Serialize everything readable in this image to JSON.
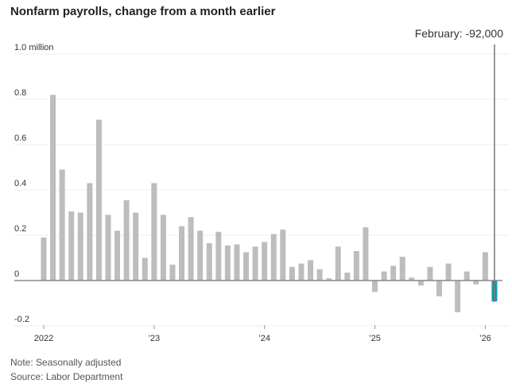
{
  "chart_data": {
    "type": "bar",
    "title": "Nonfarm payrolls, change from a month earlier",
    "unit_label": "1.0 million",
    "yticks": [
      {
        "value": 1.0,
        "label": "1.0 million"
      },
      {
        "value": 0.8,
        "label": "0.8"
      },
      {
        "value": 0.6,
        "label": "0.6"
      },
      {
        "value": 0.4,
        "label": "0.4"
      },
      {
        "value": 0.2,
        "label": "0.2"
      },
      {
        "value": 0,
        "label": "0"
      },
      {
        "value": -0.2,
        "label": "-0.2"
      }
    ],
    "ylim": [
      -0.2,
      1.0
    ],
    "xticks": [
      {
        "index": 0,
        "label": "2022"
      },
      {
        "index": 12,
        "label": "’23"
      },
      {
        "index": 24,
        "label": "’24"
      },
      {
        "index": 36,
        "label": "’25"
      },
      {
        "index": 48,
        "label": "’26"
      }
    ],
    "start": "2022-01",
    "frequency": "monthly",
    "values": [
      0.19,
      0.82,
      0.49,
      0.305,
      0.3,
      0.43,
      0.71,
      0.29,
      0.22,
      0.355,
      0.3,
      0.1,
      0.43,
      0.29,
      0.07,
      0.24,
      0.28,
      0.22,
      0.165,
      0.215,
      0.155,
      0.16,
      0.125,
      0.15,
      0.17,
      0.205,
      0.225,
      0.06,
      0.075,
      0.09,
      0.05,
      0.01,
      0.15,
      0.035,
      0.13,
      0.235,
      -0.05,
      0.04,
      0.065,
      0.105,
      0.013,
      -0.022,
      0.06,
      -0.07,
      0.075,
      -0.14,
      0.04,
      -0.017,
      0.125,
      -0.092
    ],
    "grid": true,
    "colors": {
      "bar": "#bdbdbd",
      "highlight": "#1497ad",
      "grid": "#ececec",
      "axis": "#888888"
    },
    "annotation": {
      "index": 49,
      "label": "February: -92,000"
    }
  },
  "footer": {
    "note": "Note: Seasonally adjusted",
    "source": "Source: Labor Department"
  }
}
